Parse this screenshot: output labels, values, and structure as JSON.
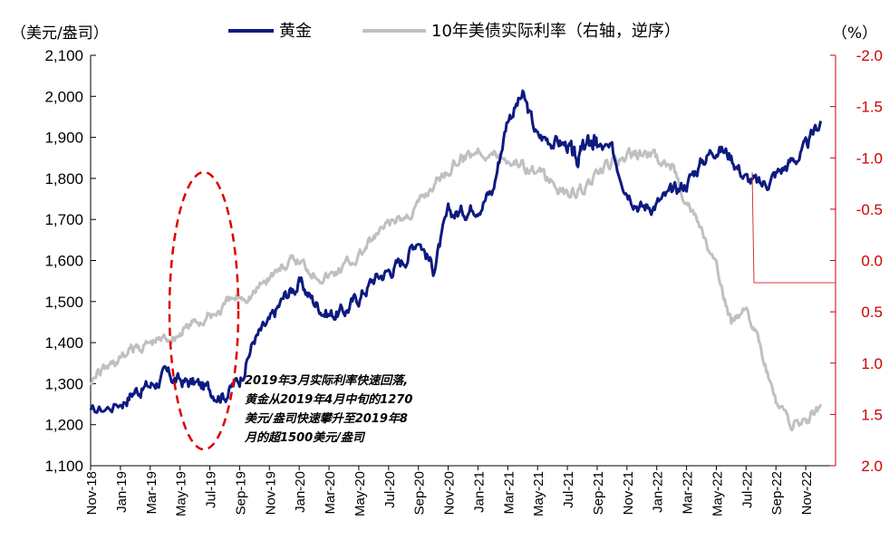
{
  "chart_data": {
    "type": "line",
    "left_axis_label": "（美元/盎司）",
    "right_axis_label": "（%）",
    "left_ylim": [
      1100,
      2100
    ],
    "right_ylim": [
      -2.0,
      2.0
    ],
    "right_axis_reversed": true,
    "left_ticks": [
      "2,100",
      "2,000",
      "1,900",
      "1,800",
      "1,700",
      "1,600",
      "1,500",
      "1,400",
      "1,300",
      "1,200",
      "1,100"
    ],
    "right_ticks": [
      "-2.0",
      "-1.5",
      "-1.0",
      "-0.5",
      "0.0",
      "0.5",
      "1.0",
      "1.5",
      "2.0"
    ],
    "x_ticks": [
      "Nov-18",
      "Jan-19",
      "Mar-19",
      "May-19",
      "Jul-19",
      "Sep-19",
      "Nov-19",
      "Jan-20",
      "Mar-20",
      "May-20",
      "Jul-20",
      "Sep-20",
      "Nov-20",
      "Jan-21",
      "Mar-21",
      "May-21",
      "Jul-21",
      "Sep-21",
      "Nov-21",
      "Jan-22",
      "Mar-22",
      "May-22",
      "Jul-22",
      "Sep-22",
      "Nov-22"
    ],
    "series": [
      {
        "name": "黄金",
        "axis": "left",
        "color": "#0d1a80",
        "x": [
          0,
          1,
          1.5,
          2,
          2.5,
          3,
          3.5,
          4,
          4.5,
          5,
          5.5,
          6,
          6.5,
          7,
          7.5,
          8,
          8.5,
          9,
          9.5,
          10,
          10.5,
          11,
          11.5,
          12,
          12.5,
          13,
          13.5,
          14,
          14.5,
          15,
          15.5,
          16,
          16.3,
          16.5,
          16.8,
          17,
          17.5,
          18,
          18.5,
          19,
          19.5,
          20,
          20.5,
          21,
          21.5,
          22,
          22.5,
          23,
          23.5,
          24,
          24.5
        ],
        "values": [
          1225,
          1255,
          1285,
          1295,
          1320,
          1305,
          1300,
          1285,
          1275,
          1310,
          1410,
          1445,
          1510,
          1545,
          1500,
          1470,
          1475,
          1510,
          1555,
          1575,
          1600,
          1660,
          1580,
          1710,
          1720,
          1740,
          1770,
          1950,
          2000,
          1900,
          1895,
          1880,
          1840,
          1870,
          1890,
          1880,
          1860,
          1780,
          1730,
          1740,
          1760,
          1790,
          1840,
          1880,
          1855,
          1800,
          1780,
          1810,
          1840,
          1870,
          1940
        ]
      },
      {
        "name": "10年美债实际利率（右轴，逆序）",
        "axis": "right",
        "color": "#c0c0c0",
        "x": [
          0,
          0.5,
          1,
          1.5,
          2,
          2.5,
          3,
          3.5,
          4,
          4.5,
          5,
          5.5,
          6,
          6.5,
          7,
          7.5,
          8,
          8.5,
          9,
          9.5,
          10,
          10.5,
          11,
          11.5,
          12,
          12.5,
          13,
          13.5,
          14,
          14.5,
          15,
          15.5,
          16,
          16.5,
          17,
          17.5,
          18,
          18.5,
          19,
          19.5,
          20,
          20.5,
          21,
          21.5,
          22,
          22.5,
          23,
          23.5,
          24,
          24.5
        ],
        "values": [
          1.15,
          1.05,
          0.95,
          0.85,
          0.8,
          0.75,
          0.7,
          0.6,
          0.55,
          0.45,
          0.35,
          0.3,
          0.15,
          0.05,
          0.0,
          0.1,
          0.15,
          0.05,
          -0.05,
          -0.2,
          -0.35,
          -0.4,
          -0.55,
          -0.75,
          -0.9,
          -1.0,
          -1.1,
          -1.05,
          -1.0,
          -0.95,
          -0.85,
          -0.75,
          -0.65,
          -0.7,
          -0.8,
          -0.95,
          -1.0,
          -1.05,
          -0.98,
          -0.92,
          -0.6,
          -0.3,
          0.1,
          0.6,
          0.4,
          0.9,
          1.4,
          1.6,
          1.55,
          1.4
        ]
      }
    ],
    "annotation": {
      "lines": [
        "2019年3月实际利率快速回落,",
        "黄金从2019年4月中旬的1270",
        "美元/盎司快速攀升至2019年8",
        "月的超1500美元/盎司"
      ]
    }
  },
  "style": {
    "gold_color": "#0d1a80",
    "rate_color": "#c0c0c0",
    "right_axis_color": "#cc0000",
    "ellipse_color": "#dd0000"
  }
}
